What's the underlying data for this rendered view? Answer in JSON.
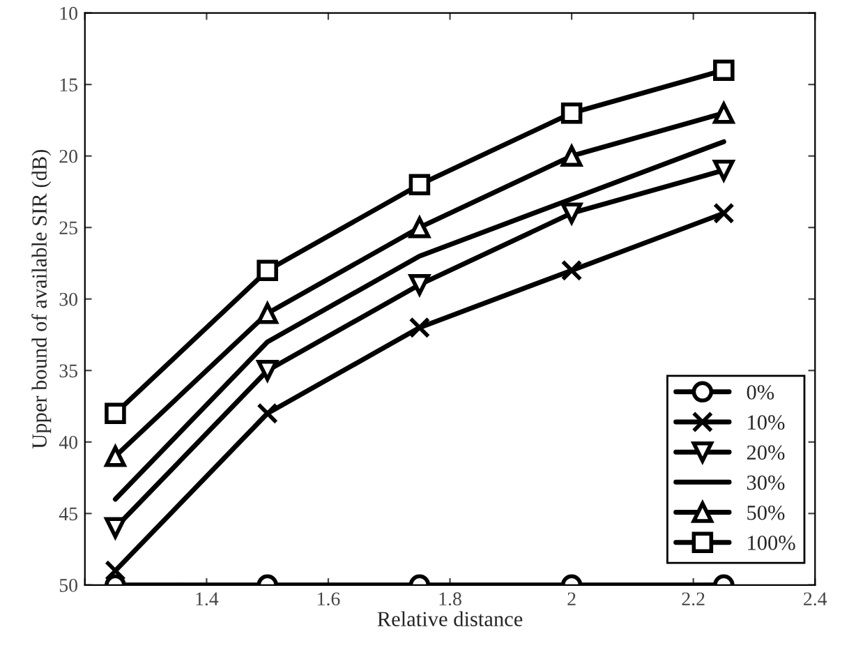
{
  "chart_data": {
    "type": "line",
    "xlabel": "Relative distance",
    "ylabel": "Upper bound of available SIR (dB)",
    "x": [
      1.25,
      1.5,
      1.75,
      2,
      2.25
    ],
    "xlim": [
      1.2,
      2.4
    ],
    "xticks": [
      {
        "value": 1.2,
        "label": null
      },
      1.4,
      1.6,
      1.8,
      2,
      2.2,
      2.4
    ],
    "ylim": [
      50,
      10
    ],
    "yticks": [
      10,
      15,
      20,
      25,
      30,
      35,
      40,
      45,
      50
    ],
    "grid": false,
    "legend": "bottom right",
    "line_style": "solid",
    "series": [
      {
        "name": "0%",
        "color": "#000000",
        "marker": "circle",
        "values": [
          50,
          50,
          50,
          50,
          50
        ]
      },
      {
        "name": "10%",
        "color": "#000000",
        "marker": "cross",
        "values": [
          49,
          38,
          32,
          28,
          24
        ]
      },
      {
        "name": "20%",
        "color": "#000000",
        "marker": "triangle_down",
        "values": [
          46,
          35,
          29,
          24,
          21
        ]
      },
      {
        "name": "30%",
        "color": "#000000",
        "marker": "none",
        "values": [
          44,
          33,
          27,
          23,
          19
        ]
      },
      {
        "name": "50%",
        "color": "#000000",
        "marker": "triangle",
        "values": [
          41,
          31,
          25,
          20,
          17
        ]
      },
      {
        "name": "100%",
        "color": "#000000",
        "marker": "square",
        "values": [
          38,
          28,
          22,
          17,
          14
        ]
      }
    ]
  }
}
